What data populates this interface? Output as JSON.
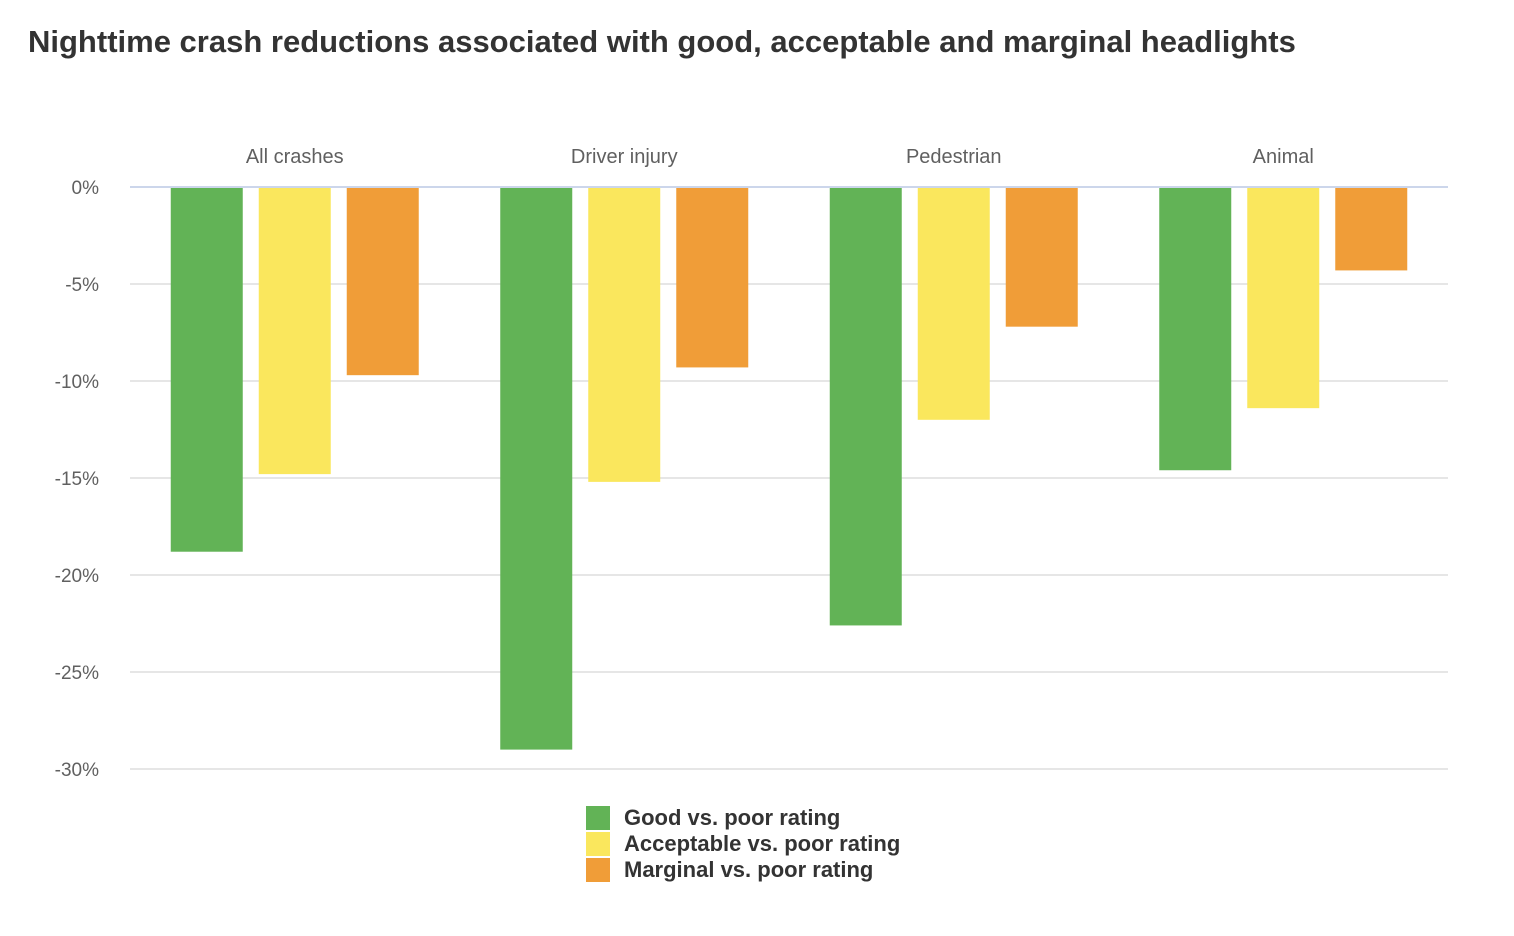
{
  "chart_data": {
    "type": "bar",
    "title": "Nighttime crash reductions associated with good, acceptable and marginal headlights",
    "categories": [
      "All crashes",
      "Driver injury",
      "Pedestrian",
      "Animal"
    ],
    "category_axis_position": "top",
    "series": [
      {
        "name": "Good vs. poor rating",
        "color": "#62b356",
        "values": [
          -18.8,
          -29.0,
          -22.6,
          -14.6
        ]
      },
      {
        "name": "Acceptable vs. poor rating",
        "color": "#fae75d",
        "values": [
          -14.8,
          -15.2,
          -12.0,
          -11.4
        ]
      },
      {
        "name": "Marginal vs. poor rating",
        "color": "#f09d38",
        "values": [
          -9.7,
          -9.3,
          -7.2,
          -4.3
        ]
      }
    ],
    "ylim": [
      -30,
      0
    ],
    "yticks": [
      0,
      -5,
      -10,
      -15,
      -20,
      -25,
      -30
    ],
    "ytick_labels": [
      "0%",
      "-5%",
      "-10%",
      "-15%",
      "-20%",
      "-25%",
      "-30%"
    ],
    "xlabel": "",
    "ylabel": "",
    "grid": true,
    "legend": "bottom-center"
  }
}
